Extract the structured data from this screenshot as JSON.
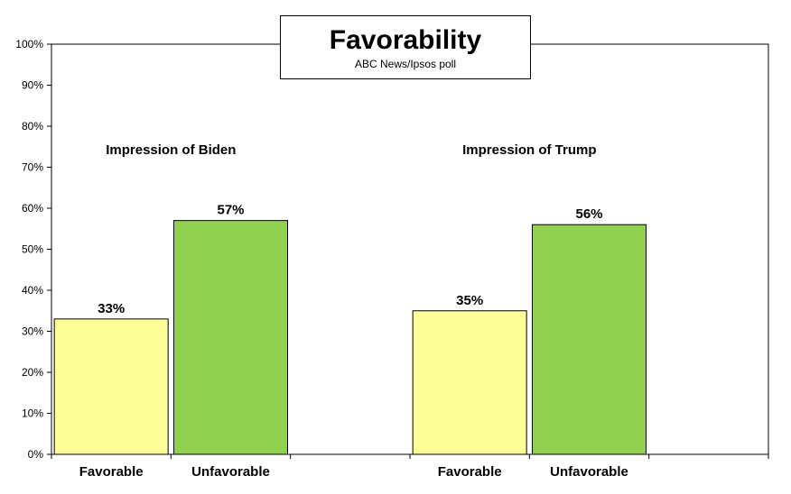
{
  "chart_data": {
    "type": "bar",
    "title": "Favorability",
    "subtitle": "ABC News/Ipsos  poll",
    "yticks": [
      "0%",
      "10%",
      "20%",
      "30%",
      "40%",
      "50%",
      "60%",
      "70%",
      "80%",
      "90%",
      "100%"
    ],
    "ylim": [
      0,
      100
    ],
    "grid": false,
    "groups": [
      {
        "label": "Impression of Biden",
        "categories": [
          "Favorable",
          "Unfavorable"
        ],
        "values": [
          33,
          57
        ],
        "value_labels": [
          "33%",
          "57%"
        ]
      },
      {
        "label": "Impression of Trump",
        "categories": [
          "Favorable",
          "Unfavorable"
        ],
        "values": [
          35,
          56
        ],
        "value_labels": [
          "35%",
          "56%"
        ]
      }
    ],
    "colors": {
      "favorable": "#FFFF99",
      "unfavorable": "#92D050",
      "outline": "#000000"
    }
  }
}
